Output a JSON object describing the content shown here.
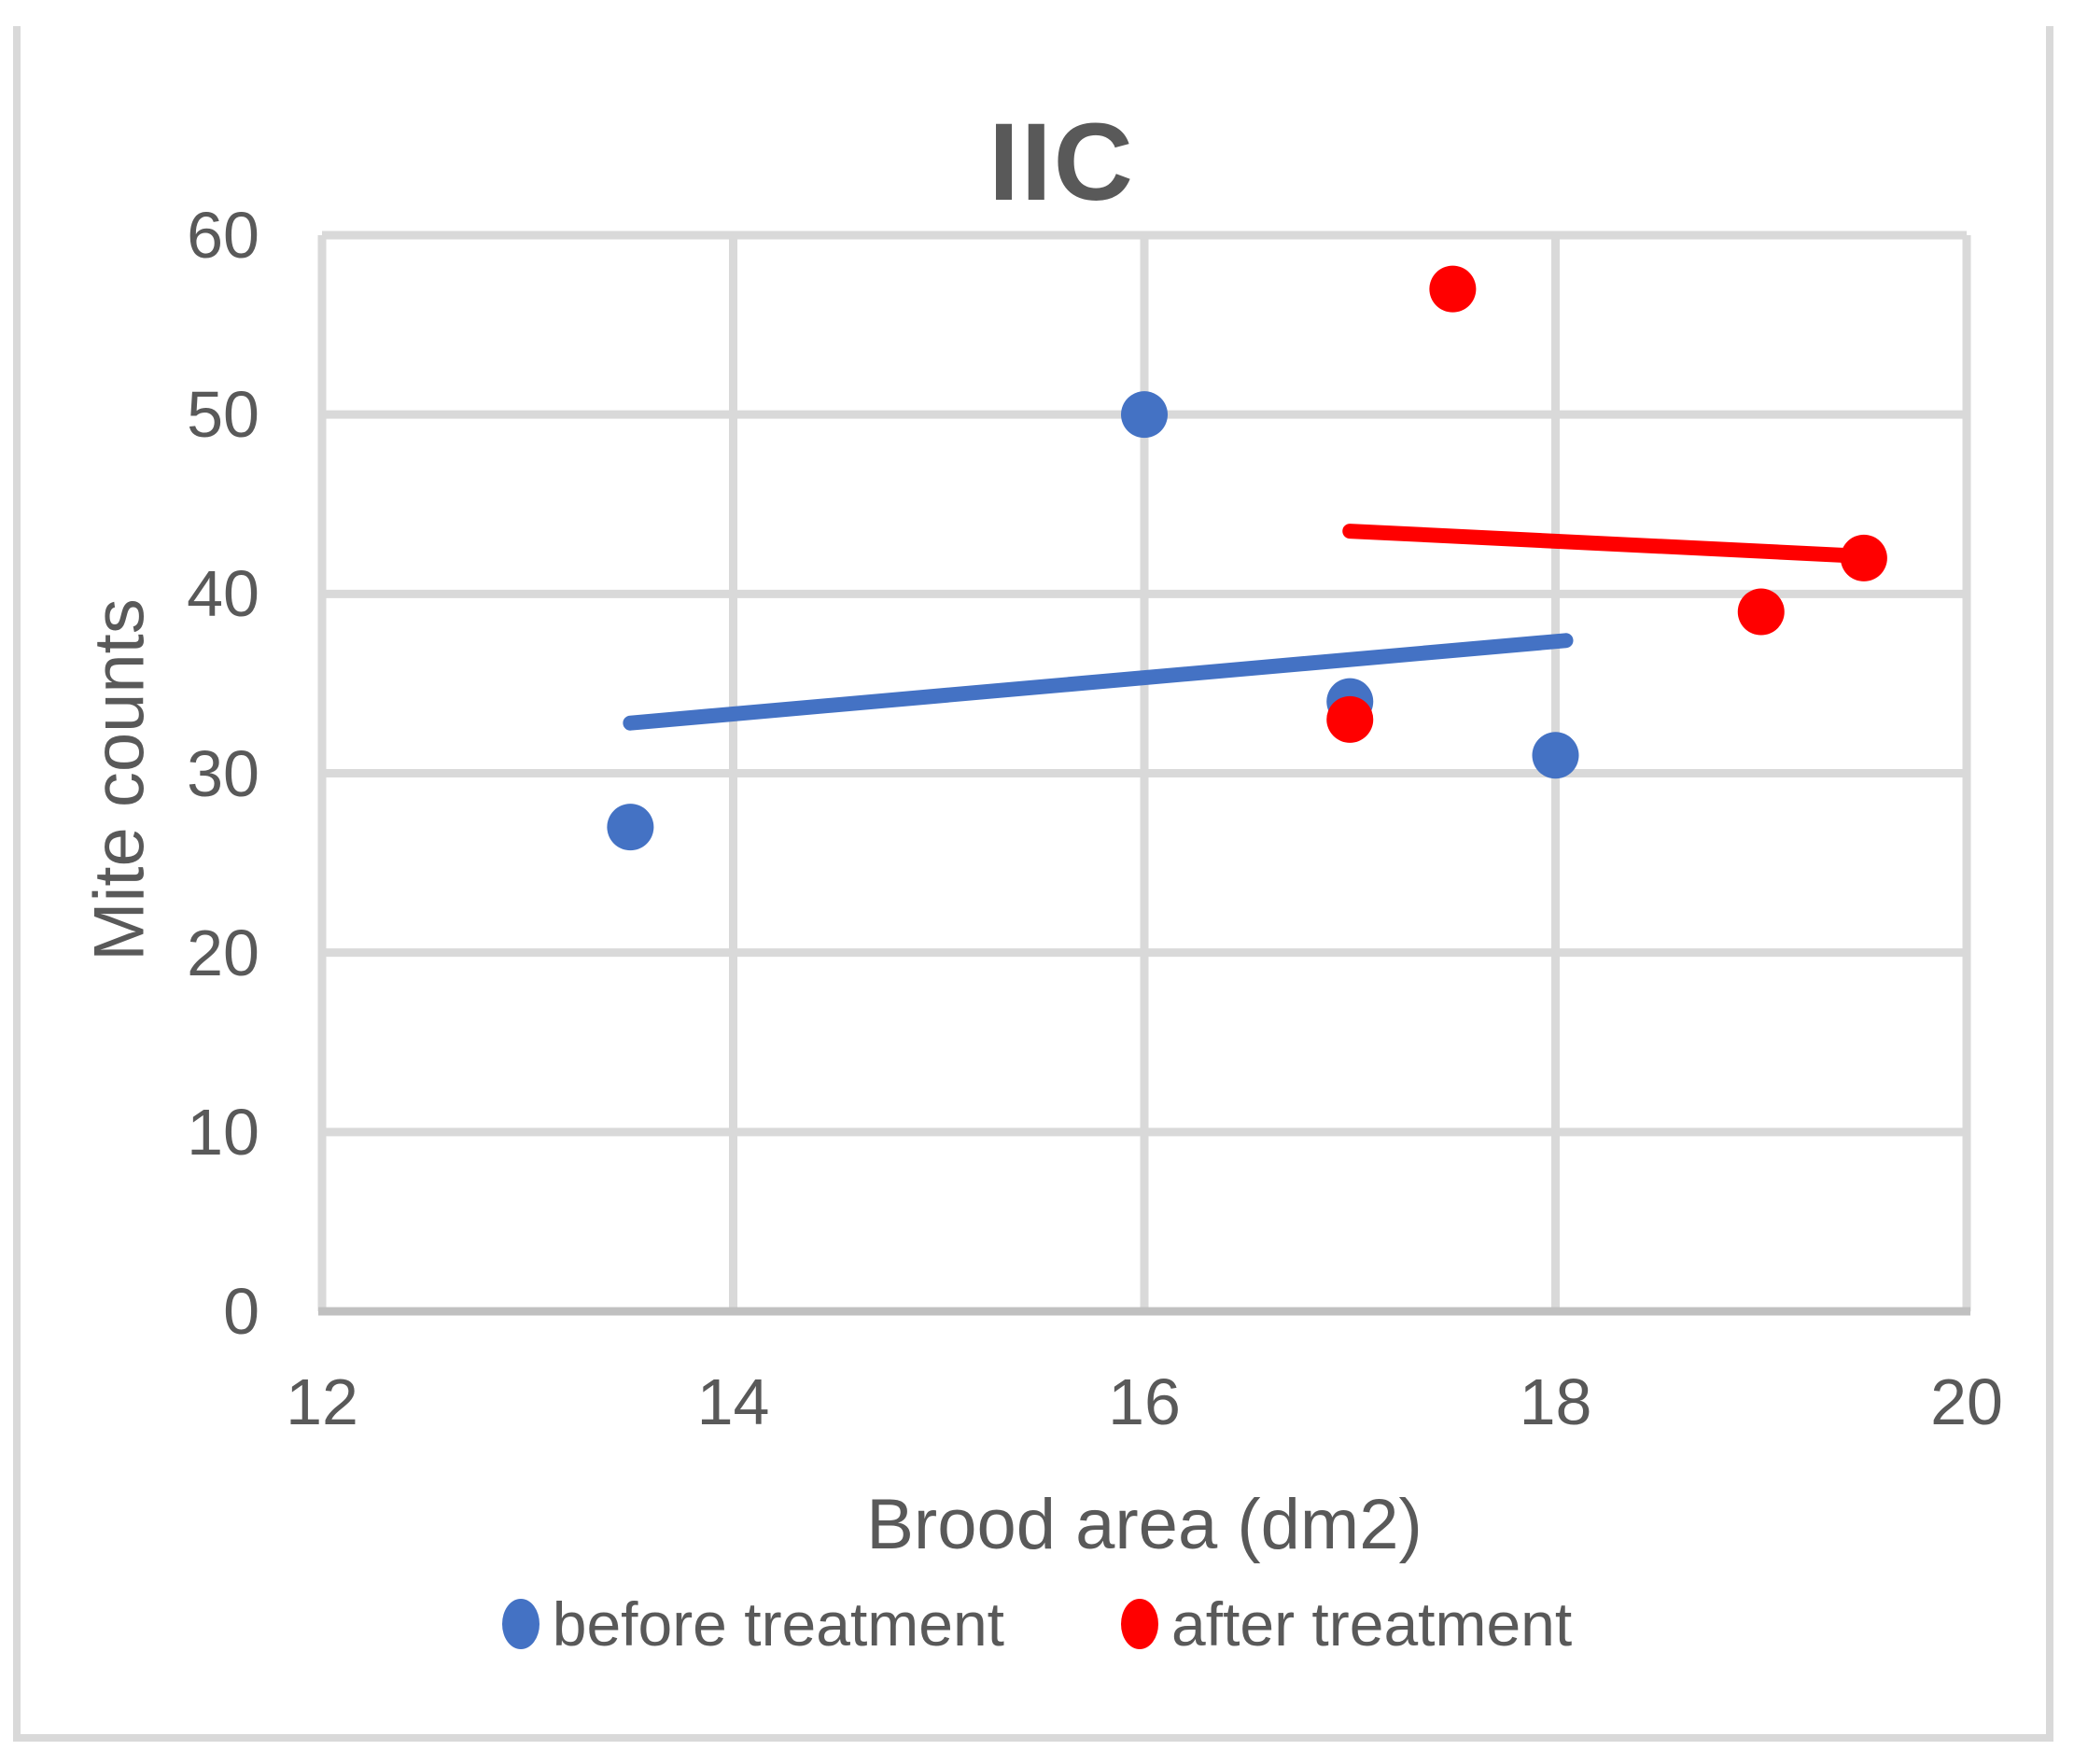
{
  "chart_data": {
    "type": "scatter",
    "title": "IIC",
    "xlabel": "Brood area (dm2)",
    "ylabel": "Mite counts",
    "xlim": [
      12,
      20
    ],
    "ylim": [
      0,
      60
    ],
    "x_ticks": [
      12,
      14,
      16,
      18,
      20
    ],
    "y_ticks": [
      0,
      10,
      20,
      30,
      40,
      50,
      60
    ],
    "grid": true,
    "legend_position": "bottom",
    "series": [
      {
        "name": "before treatment",
        "color": "#4472C4",
        "marker": "circle",
        "points": [
          [
            13.5,
            27
          ],
          [
            16,
            50
          ],
          [
            17,
            34
          ],
          [
            18,
            31
          ]
        ],
        "trendline": {
          "x1": 13.5,
          "y1": 32.8,
          "x2": 18.05,
          "y2": 37.4
        }
      },
      {
        "name": "after treatment",
        "color": "#FF0000",
        "marker": "circle",
        "points": [
          [
            17,
            33
          ],
          [
            17.5,
            57
          ],
          [
            19,
            39
          ],
          [
            19.5,
            42
          ]
        ],
        "trendline": {
          "x1": 17.0,
          "y1": 43.5,
          "x2": 19.5,
          "y2": 42.1
        }
      }
    ]
  },
  "style": {
    "gridline_color": "#D9D9D9",
    "axis_line_color": "#C0C0C0",
    "text_color": "#595959",
    "point_radius": 25,
    "gridline_width": 9,
    "trendline_width": 16
  }
}
